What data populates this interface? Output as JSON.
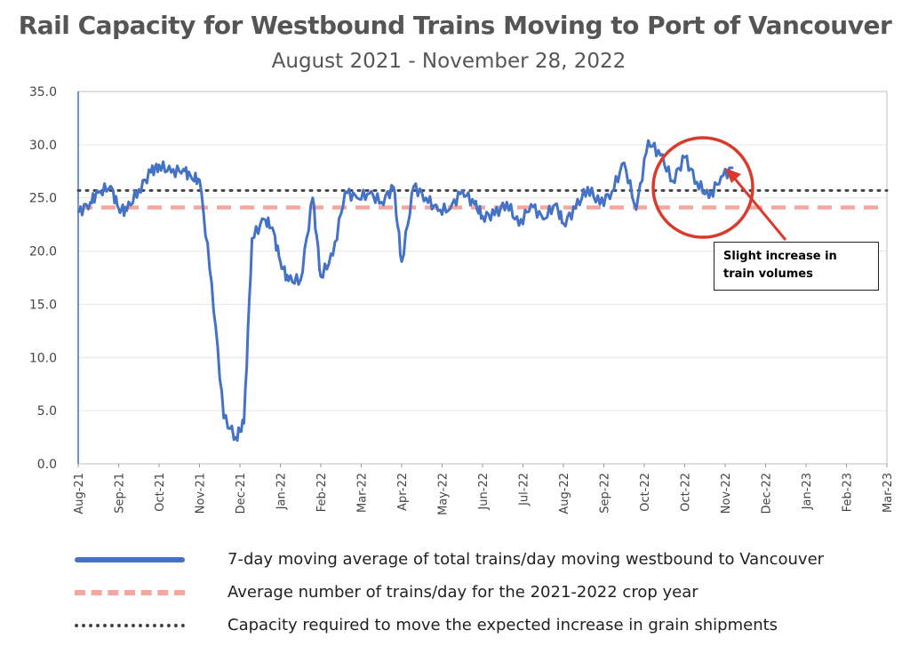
{
  "header": {
    "title": "Rail Capacity for Westbound Trains Moving to Port of Vancouver",
    "subtitle": "August 2021 - November 28, 2022"
  },
  "callout": {
    "text": "Slight increase in train volumes"
  },
  "legend": [
    {
      "label": "7-day moving average of total trains/day moving westbound to Vancouver",
      "style": "solid",
      "color": "#4472C4"
    },
    {
      "label": "Average number of trains/day for the 2021-2022 crop year",
      "style": "dashed",
      "color": "#F4A6A0"
    },
    {
      "label": "Capacity required to move the expected increase in grain shipments",
      "style": "dotted",
      "color": "#444444"
    }
  ],
  "colors": {
    "series": "#4472C4",
    "average": "#F4A6A0",
    "capacity": "#444444",
    "callout_circle": "#D93A2B",
    "grid": "#E6E6E6"
  },
  "chart_data": {
    "type": "line",
    "title": "Rail Capacity for Westbound Trains Moving to Port of Vancouver",
    "subtitle": "August 2021 - November 28, 2022",
    "xlabel": "",
    "ylabel": "",
    "ylim": [
      0,
      35
    ],
    "y_ticks": [
      "0.0",
      "5.0",
      "10.0",
      "15.0",
      "20.0",
      "25.0",
      "30.0",
      "35.0"
    ],
    "x_ticks": [
      "Aug-21",
      "Sep-21",
      "Oct-21",
      "Nov-21",
      "Dec-21",
      "Jan-22",
      "Feb-22",
      "Mar-22",
      "Apr-22",
      "May-22",
      "Jun-22",
      "Jul-22",
      "Aug-22",
      "Sep-22",
      "Oct-22",
      "Oct-22",
      "Nov-22",
      "Dec-22",
      "Jan-23",
      "Feb-23",
      "Mar-23"
    ],
    "grid": true,
    "legend_position": "bottom",
    "series": [
      {
        "name": "7-day moving average of total trains/day moving westbound to Vancouver",
        "style": "solid",
        "x": [
          0,
          0.3,
          0.5,
          0.8,
          1.0,
          1.2,
          1.5,
          1.8,
          2.0,
          2.3,
          2.6,
          2.8,
          3.0,
          3.3,
          3.6,
          3.9,
          4.1,
          4.3,
          4.6,
          4.8,
          5.0,
          5.2,
          5.5,
          5.8,
          6.0,
          6.3,
          6.6,
          6.9,
          7.2,
          7.5,
          7.8,
          8.0,
          8.3,
          8.6,
          8.9,
          9.2,
          9.5,
          9.8,
          10.0,
          10.3,
          10.6,
          10.9,
          11.2,
          11.5,
          11.8,
          12.0,
          12.3,
          12.6,
          12.9,
          13.2,
          13.5,
          13.8,
          14.1,
          14.4,
          14.7,
          15.0,
          15.3,
          15.6,
          15.9,
          16.2
        ],
        "y": [
          23.6,
          24.6,
          25.5,
          26.1,
          24.0,
          23.8,
          25.8,
          27.4,
          28.1,
          27.4,
          27.7,
          26.9,
          26.7,
          17.0,
          4.3,
          2.5,
          3.8,
          21.2,
          23.0,
          22.2,
          19.0,
          17.2,
          17.3,
          25.0,
          17.6,
          19.6,
          25.6,
          25.0,
          25.4,
          24.6,
          26.0,
          19.0,
          26.1,
          25.0,
          23.8,
          24.0,
          25.7,
          24.4,
          23.3,
          23.4,
          24.6,
          22.4,
          24.4,
          23.0,
          24.4,
          22.6,
          24.0,
          26.0,
          24.4,
          25.6,
          28.3,
          23.9,
          30.4,
          29.0,
          26.6,
          28.8,
          26.5,
          25.0,
          27.0,
          27.8
        ]
      },
      {
        "name": "Average number of trains/day for the 2021-2022 crop year",
        "style": "dashed",
        "value": 24.1
      },
      {
        "name": "Capacity required to move the expected increase in grain shipments",
        "style": "dotted",
        "value": 25.7
      }
    ]
  }
}
